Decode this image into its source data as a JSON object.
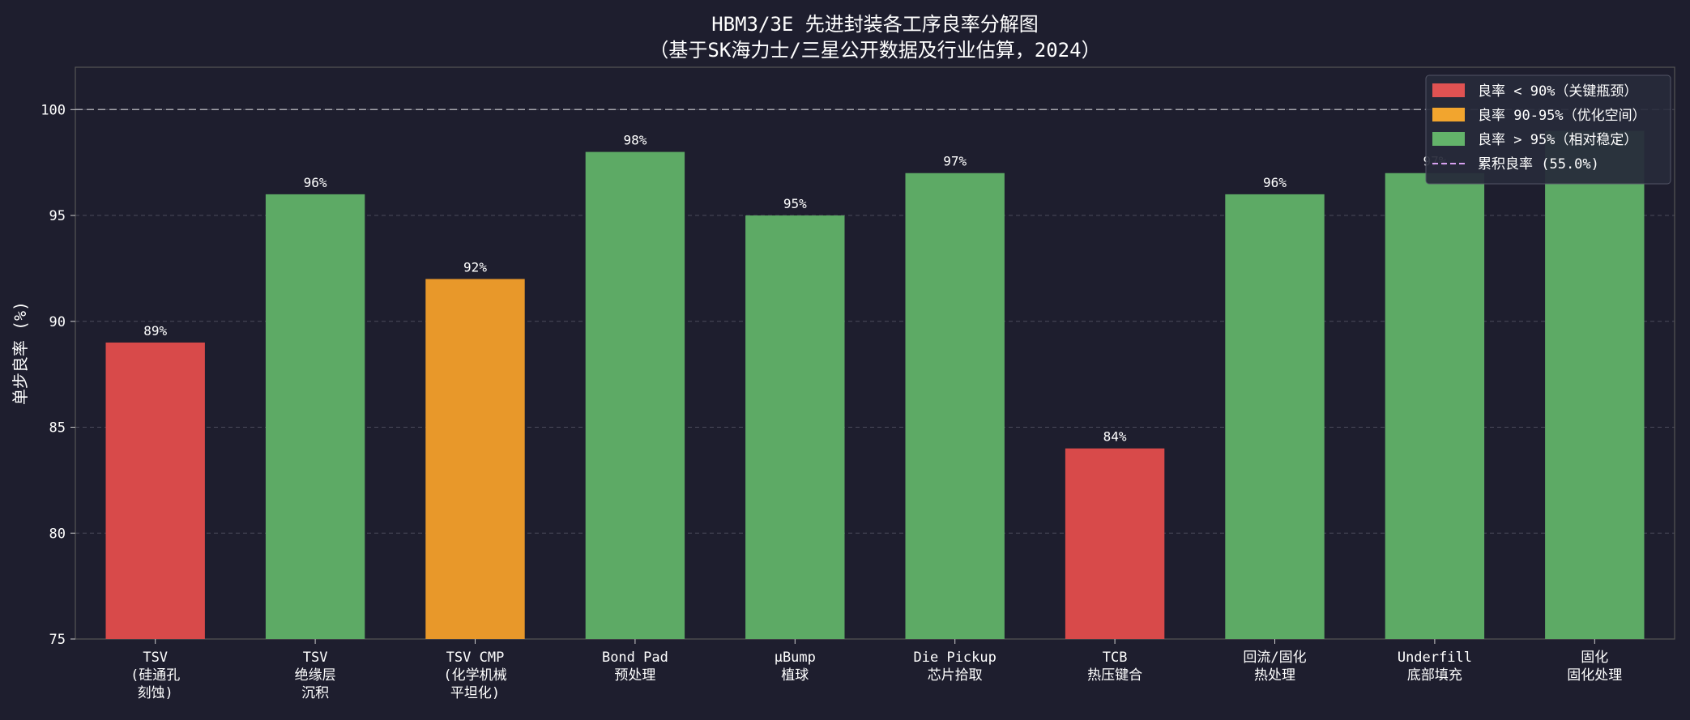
{
  "chart_data": {
    "type": "bar",
    "title": "HBM3/3E 先进封装各工序良率分解图",
    "subtitle": "（基于SK海力士/三星公开数据及行业估算，2024）",
    "xlabel": "",
    "ylabel": "单步良率 (%)",
    "ylim": [
      75,
      102
    ],
    "yticks": [
      75,
      80,
      85,
      90,
      95,
      100
    ],
    "grid": "y-dashed",
    "reference_line": {
      "value": 100,
      "style": "dashed"
    },
    "categories": [
      [
        "TSV",
        "(硅通孔",
        "刻蚀)"
      ],
      [
        "TSV",
        "绝缘层",
        "沉积"
      ],
      [
        "TSV CMP",
        "(化学机械",
        "平坦化)"
      ],
      [
        "Bond Pad",
        "预处理"
      ],
      [
        "μBump",
        "植球"
      ],
      [
        "Die Pickup",
        "芯片拾取"
      ],
      [
        "TCB",
        "热压键合"
      ],
      [
        "回流/固化",
        "热处理"
      ],
      [
        "Underfill",
        "底部填充"
      ],
      [
        "固化",
        "固化处理"
      ]
    ],
    "values": [
      89,
      96,
      92,
      98,
      95,
      97,
      84,
      96,
      97,
      99
    ],
    "data_labels": [
      "89%",
      "96%",
      "92%",
      "98%",
      "95%",
      "97%",
      "84%",
      "96%",
      "97%",
      ""
    ],
    "bar_colors": [
      "#d84a4a",
      "#5daa65",
      "#e8982a",
      "#5daa65",
      "#5daa65",
      "#5daa65",
      "#d84a4a",
      "#5daa65",
      "#5daa65",
      "#5daa65"
    ],
    "legend": {
      "position": "top-right",
      "entries": [
        {
          "label": "良率 < 90%（关键瓶颈）",
          "color": "#e05252",
          "kind": "patch"
        },
        {
          "label": "良率 90-95%（优化空间）",
          "color": "#f2a52e",
          "kind": "patch"
        },
        {
          "label": "良率 > 95%（相对稳定）",
          "color": "#63b36a",
          "kind": "patch"
        },
        {
          "label": "累积良率 (55.0%)",
          "color": "#d7a0f0",
          "kind": "dashed-line"
        }
      ]
    }
  },
  "colors": {
    "background": "#1e1e2e",
    "axes_edge": "#555555",
    "grid": "#4a4a5a",
    "reference_line": "#a6a6ad",
    "legend_bg": "#272a3a",
    "legend_edge": "#55596a"
  }
}
